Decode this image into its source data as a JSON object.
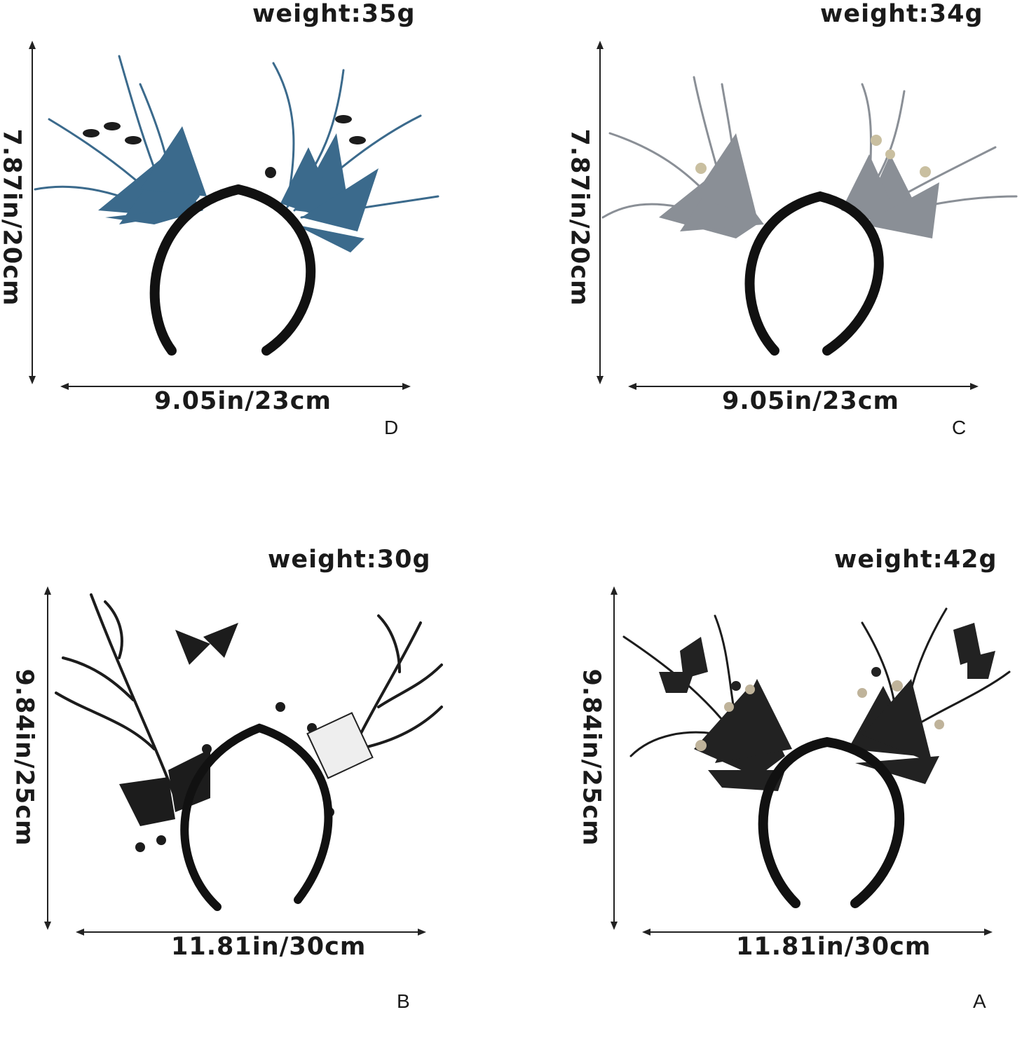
{
  "products": [
    {
      "id": "D",
      "letter": "D",
      "weight": "weight:35g",
      "height_label": "7.87in/20cm",
      "width_label": "9.05in/23cm",
      "plume_color": "#3b6a8c"
    },
    {
      "id": "C",
      "letter": "C",
      "weight": "weight:34g",
      "height_label": "7.87in/20cm",
      "width_label": "9.05in/23cm",
      "plume_color": "#8a8f96"
    },
    {
      "id": "B",
      "letter": "B",
      "weight": "weight:30g",
      "height_label": "9.84in/25cm",
      "width_label": "11.81in/30cm",
      "plume_color": "#1c1c1c"
    },
    {
      "id": "A",
      "letter": "A",
      "weight": "weight:42g",
      "height_label": "9.84in/25cm",
      "width_label": "11.81in/30cm",
      "plume_color": "#222222"
    }
  ]
}
